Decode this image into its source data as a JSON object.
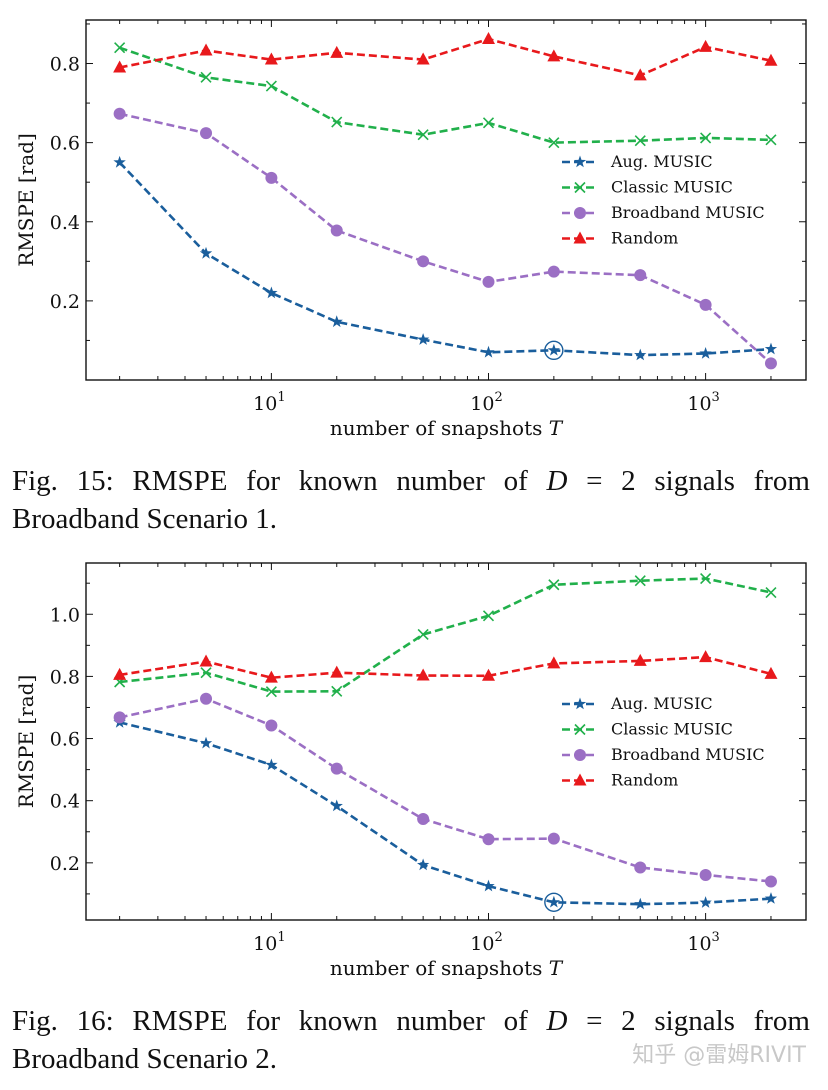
{
  "colors": {
    "aug": "#1a5e9c",
    "classic": "#21b04b",
    "broadband": "#9b6fc4",
    "random": "#e8191c"
  },
  "chart_data": [
    {
      "type": "line",
      "xscale": "log",
      "xlabel": "number of snapshots T",
      "ylabel": "RMSPE [rad]",
      "xlim": [
        1.4,
        2900
      ],
      "ylim": [
        0.0,
        0.91
      ],
      "xticks": [
        10,
        100,
        1000
      ],
      "xtick_labels": [
        [
          "10",
          "1"
        ],
        [
          "10",
          "2"
        ],
        [
          "10",
          "3"
        ]
      ],
      "yticks": [
        0.2,
        0.4,
        0.6,
        0.8
      ],
      "ytick_labels": [
        "0.2",
        "0.4",
        "0.6",
        "0.8"
      ],
      "legend_position": "center-right",
      "grid": false,
      "x": [
        2,
        5,
        10,
        20,
        50,
        100,
        200,
        500,
        1000,
        2000
      ],
      "series": [
        {
          "name": "Aug. MUSIC",
          "marker": "star",
          "color_key": "aug",
          "values": [
            0.55,
            0.32,
            0.22,
            0.147,
            0.102,
            0.07,
            0.075,
            0.063,
            0.067,
            0.078
          ]
        },
        {
          "name": "Classic MUSIC",
          "marker": "x",
          "color_key": "classic",
          "values": [
            0.84,
            0.765,
            0.743,
            0.652,
            0.62,
            0.65,
            0.6,
            0.605,
            0.612,
            0.607
          ]
        },
        {
          "name": "Broadband MUSIC",
          "marker": "circle",
          "color_key": "broadband",
          "values": [
            0.673,
            0.624,
            0.511,
            0.378,
            0.3,
            0.248,
            0.274,
            0.265,
            0.19,
            0.042
          ]
        },
        {
          "name": "Random",
          "marker": "triangle",
          "color_key": "random",
          "values": [
            0.79,
            0.833,
            0.81,
            0.827,
            0.81,
            0.862,
            0.818,
            0.77,
            0.842,
            0.807
          ]
        }
      ],
      "annotation": {
        "series": "Aug. MUSIC",
        "x": 200,
        "shape": "circle"
      }
    },
    {
      "type": "line",
      "xscale": "log",
      "xlabel": "number of snapshots T",
      "ylabel": "RMSPE [rad]",
      "xlim": [
        1.4,
        2900
      ],
      "ylim": [
        0.016,
        1.165
      ],
      "xticks": [
        10,
        100,
        1000
      ],
      "xtick_labels": [
        [
          "10",
          "1"
        ],
        [
          "10",
          "2"
        ],
        [
          "10",
          "3"
        ]
      ],
      "yticks": [
        0.2,
        0.4,
        0.6,
        0.8,
        1.0
      ],
      "ytick_labels": [
        "0.2",
        "0.4",
        "0.6",
        "0.8",
        "1.0"
      ],
      "legend_position": "center-right",
      "grid": false,
      "x": [
        2,
        5,
        10,
        20,
        50,
        100,
        200,
        500,
        1000,
        2000
      ],
      "series": [
        {
          "name": "Aug. MUSIC",
          "marker": "star",
          "color_key": "aug",
          "values": [
            0.652,
            0.585,
            0.515,
            0.383,
            0.193,
            0.125,
            0.073,
            0.067,
            0.072,
            0.085
          ]
        },
        {
          "name": "Classic MUSIC",
          "marker": "x",
          "color_key": "classic",
          "values": [
            0.782,
            0.812,
            0.751,
            0.752,
            0.935,
            0.995,
            1.095,
            1.108,
            1.115,
            1.07
          ]
        },
        {
          "name": "Broadband MUSIC",
          "marker": "circle",
          "color_key": "broadband",
          "values": [
            0.668,
            0.728,
            0.642,
            0.503,
            0.341,
            0.276,
            0.278,
            0.185,
            0.161,
            0.14
          ]
        },
        {
          "name": "Random",
          "marker": "triangle",
          "color_key": "random",
          "values": [
            0.805,
            0.848,
            0.796,
            0.812,
            0.803,
            0.802,
            0.842,
            0.85,
            0.862,
            0.808
          ]
        }
      ],
      "annotation": {
        "series": "Aug. MUSIC",
        "x": 200,
        "shape": "circle"
      }
    }
  ],
  "captions": [
    {
      "prefix": "Fig. 15: RMSPE for known number of ",
      "var": "D",
      "suffix": " = 2 signals from Broadband Scenario 1."
    },
    {
      "prefix": "Fig. 16: RMSPE for known number of ",
      "var": "D",
      "suffix": " = 2 signals from Broadband Scenario 2."
    }
  ],
  "watermark": "知乎 @雷姆RIVIT"
}
